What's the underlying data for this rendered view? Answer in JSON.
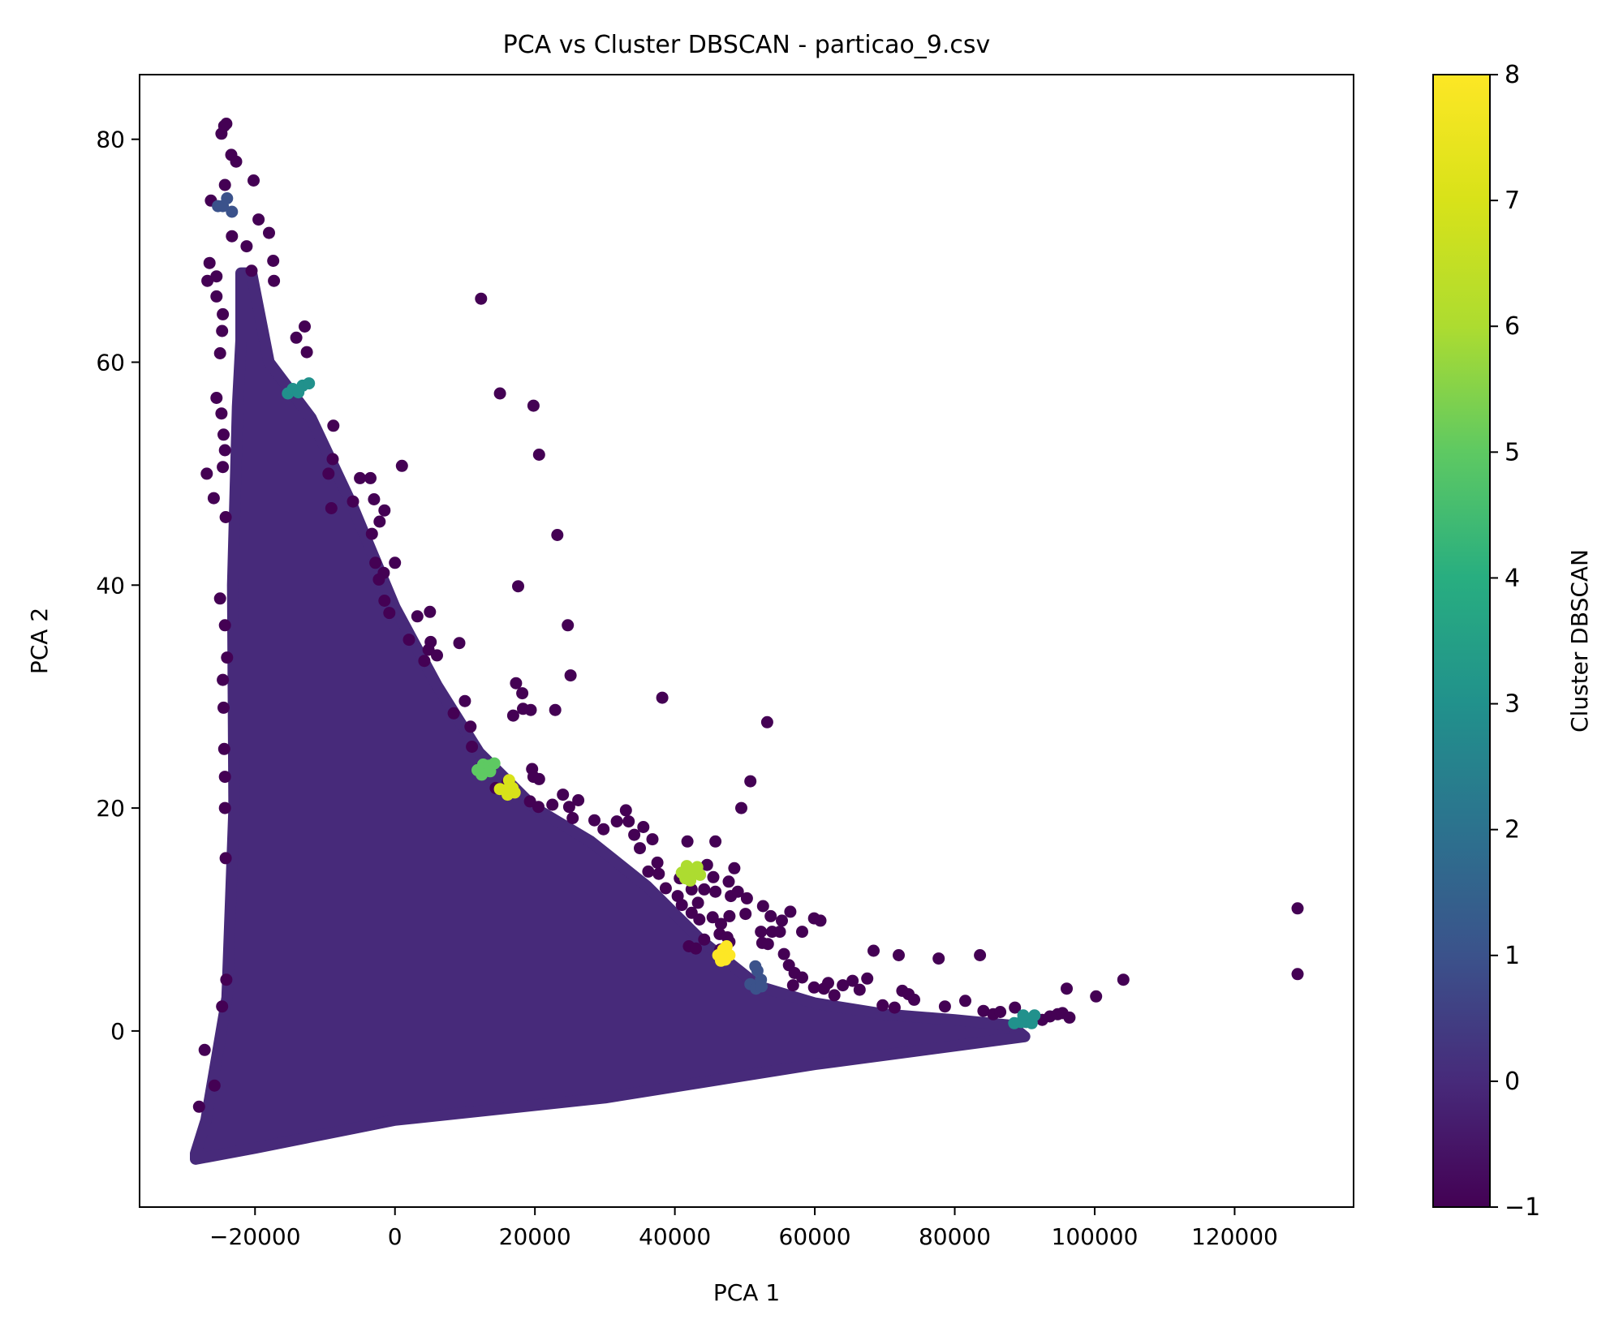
{
  "chart_data": {
    "type": "scatter",
    "title": "PCA vs Cluster DBSCAN - particao_9.csv",
    "xlabel": "PCA 1",
    "ylabel": "PCA 2",
    "xlim": [
      -36500,
      137000
    ],
    "ylim": [
      -15.8,
      85.8
    ],
    "xticks": [
      -20000,
      0,
      20000,
      40000,
      60000,
      80000,
      100000,
      120000
    ],
    "xtick_labels": [
      "−20000",
      "0",
      "20000",
      "40000",
      "60000",
      "80000",
      "100000",
      "120000"
    ],
    "yticks": [
      0,
      20,
      40,
      60,
      80
    ],
    "ytick_labels": [
      "0",
      "20",
      "40",
      "60",
      "80"
    ],
    "grid": false,
    "colorbar": {
      "label": "Cluster DBSCAN",
      "range": [
        -1,
        8
      ],
      "ticks": [
        -1,
        0,
        1,
        2,
        3,
        4,
        5,
        6,
        7,
        8
      ],
      "tick_labels": [
        "−1",
        "0",
        "1",
        "2",
        "3",
        "4",
        "5",
        "6",
        "7",
        "8"
      ],
      "colormap": "viridis"
    },
    "cluster_colors": {
      "-1": "#440154",
      "0": "#472a7a",
      "1": "#3b528b",
      "2": "#2c728e",
      "3": "#21918c",
      "4": "#28ae80",
      "5": "#5ec962",
      "6": "#addc30",
      "7": "#d8e219",
      "8": "#fde725"
    },
    "dense_region": {
      "cluster": 0,
      "polygon": [
        [
          -28500,
          -11
        ],
        [
          -27000,
          -8
        ],
        [
          -24000,
          3
        ],
        [
          -23000,
          20
        ],
        [
          -23200,
          40
        ],
        [
          -22500,
          56
        ],
        [
          -22000,
          62
        ],
        [
          -22000,
          68
        ],
        [
          -20500,
          68
        ],
        [
          -18000,
          60
        ],
        [
          -12000,
          55
        ],
        [
          -6000,
          47
        ],
        [
          0,
          38
        ],
        [
          6000,
          31
        ],
        [
          12000,
          25
        ],
        [
          20000,
          20
        ],
        [
          28000,
          17
        ],
        [
          36000,
          13
        ],
        [
          44000,
          8
        ],
        [
          52000,
          4
        ],
        [
          60000,
          2.5
        ],
        [
          70000,
          1.5
        ],
        [
          80000,
          1
        ],
        [
          88000,
          0.5
        ],
        [
          90000,
          -0.5
        ],
        [
          60000,
          -3
        ],
        [
          30000,
          -6
        ],
        [
          0,
          -8
        ],
        [
          -20000,
          -10.5
        ],
        [
          -28500,
          -11.5
        ]
      ]
    },
    "series": [
      {
        "cluster": -1,
        "points": [
          [
            -24800,
            80.5
          ],
          [
            -24400,
            81.2
          ],
          [
            -24100,
            81.4
          ],
          [
            -23400,
            78.6
          ],
          [
            -22700,
            78.0
          ],
          [
            -20200,
            76.3
          ],
          [
            -24300,
            75.9
          ],
          [
            -26300,
            74.5
          ],
          [
            -19500,
            72.8
          ],
          [
            -18000,
            71.6
          ],
          [
            -23300,
            71.3
          ],
          [
            -21200,
            70.4
          ],
          [
            -17400,
            69.1
          ],
          [
            -26500,
            68.9
          ],
          [
            -20500,
            68.2
          ],
          [
            -25500,
            67.7
          ],
          [
            -26800,
            67.3
          ],
          [
            -17300,
            67.3
          ],
          [
            -25500,
            65.9
          ],
          [
            -24600,
            64.3
          ],
          [
            -24700,
            62.8
          ],
          [
            -12900,
            63.2
          ],
          [
            -14100,
            62.2
          ],
          [
            -25000,
            60.8
          ],
          [
            -12600,
            60.9
          ],
          [
            -25500,
            56.8
          ],
          [
            -24800,
            55.4
          ],
          [
            -24500,
            53.5
          ],
          [
            -8800,
            54.3
          ],
          [
            -24300,
            52.1
          ],
          [
            -8900,
            51.3
          ],
          [
            -24600,
            50.6
          ],
          [
            -26900,
            50.0
          ],
          [
            -9500,
            50.0
          ],
          [
            -25900,
            47.8
          ],
          [
            -9100,
            46.9
          ],
          [
            -24200,
            46.1
          ],
          [
            -5000,
            49.6
          ],
          [
            -3500,
            49.6
          ],
          [
            -6000,
            47.5
          ],
          [
            -3000,
            47.7
          ],
          [
            -1500,
            46.7
          ],
          [
            -2200,
            45.7
          ],
          [
            -3300,
            44.6
          ],
          [
            1000,
            50.7
          ],
          [
            -2800,
            42.0
          ],
          [
            0,
            42.0
          ],
          [
            -1600,
            41.1
          ],
          [
            -2300,
            40.5
          ],
          [
            -1500,
            38.6
          ],
          [
            -800,
            37.5
          ],
          [
            3200,
            37.2
          ],
          [
            5000,
            37.6
          ],
          [
            2000,
            35.1
          ],
          [
            5100,
            34.9
          ],
          [
            9200,
            34.8
          ],
          [
            4800,
            34.2
          ],
          [
            6000,
            33.7
          ],
          [
            4200,
            33.2
          ],
          [
            10000,
            29.6
          ],
          [
            8400,
            28.5
          ],
          [
            10800,
            27.3
          ],
          [
            17300,
            31.2
          ],
          [
            18200,
            30.3
          ],
          [
            18300,
            28.9
          ],
          [
            19400,
            28.8
          ],
          [
            16900,
            28.3
          ],
          [
            22900,
            28.8
          ],
          [
            23200,
            44.5
          ],
          [
            24700,
            36.4
          ],
          [
            25100,
            31.9
          ],
          [
            17600,
            39.9
          ],
          [
            20600,
            51.7
          ],
          [
            19800,
            56.1
          ],
          [
            15000,
            57.2
          ],
          [
            12300,
            65.7
          ],
          [
            38200,
            29.9
          ],
          [
            53200,
            27.7
          ],
          [
            11000,
            25.5
          ],
          [
            14400,
            21.8
          ],
          [
            16100,
            22.3
          ],
          [
            19600,
            23.5
          ],
          [
            19800,
            22.8
          ],
          [
            20600,
            22.6
          ],
          [
            19300,
            20.6
          ],
          [
            20500,
            20.1
          ],
          [
            22500,
            20.3
          ],
          [
            24000,
            21.2
          ],
          [
            24900,
            20.1
          ],
          [
            26200,
            20.7
          ],
          [
            25400,
            19.1
          ],
          [
            28500,
            18.9
          ],
          [
            31700,
            18.8
          ],
          [
            33000,
            19.8
          ],
          [
            33400,
            18.8
          ],
          [
            29800,
            18.1
          ],
          [
            35500,
            18.3
          ],
          [
            36800,
            17.2
          ],
          [
            34200,
            17.6
          ],
          [
            41800,
            17.0
          ],
          [
            45800,
            17.0
          ],
          [
            35000,
            16.4
          ],
          [
            37500,
            15.1
          ],
          [
            36200,
            14.3
          ],
          [
            37700,
            14.1
          ],
          [
            40700,
            13.7
          ],
          [
            45500,
            13.8
          ],
          [
            48500,
            14.6
          ],
          [
            49500,
            20.0
          ],
          [
            50800,
            22.4
          ],
          [
            44600,
            14.9
          ],
          [
            44200,
            12.7
          ],
          [
            45800,
            12.5
          ],
          [
            47700,
            13.4
          ],
          [
            48000,
            12.1
          ],
          [
            49000,
            12.5
          ],
          [
            50300,
            11.9
          ],
          [
            40400,
            12.1
          ],
          [
            38700,
            12.8
          ],
          [
            42400,
            12.7
          ],
          [
            43300,
            11.5
          ],
          [
            41000,
            11.3
          ],
          [
            42400,
            10.6
          ],
          [
            43500,
            10.0
          ],
          [
            45400,
            10.2
          ],
          [
            46600,
            9.6
          ],
          [
            47800,
            10.3
          ],
          [
            50100,
            10.5
          ],
          [
            52600,
            11.2
          ],
          [
            53700,
            10.3
          ],
          [
            55300,
            9.9
          ],
          [
            56500,
            10.7
          ],
          [
            46400,
            8.7
          ],
          [
            47500,
            8.4
          ],
          [
            52300,
            8.9
          ],
          [
            53900,
            8.9
          ],
          [
            55000,
            8.9
          ],
          [
            58200,
            8.9
          ],
          [
            59900,
            10.1
          ],
          [
            60800,
            9.9
          ],
          [
            42000,
            7.6
          ],
          [
            43000,
            7.4
          ],
          [
            44200,
            8.2
          ],
          [
            46500,
            7.3
          ],
          [
            47800,
            8.0
          ],
          [
            52500,
            7.9
          ],
          [
            53300,
            7.8
          ],
          [
            55600,
            6.9
          ],
          [
            56300,
            5.9
          ],
          [
            57100,
            5.2
          ],
          [
            56900,
            4.1
          ],
          [
            58200,
            4.8
          ],
          [
            59900,
            3.9
          ],
          [
            61300,
            3.8
          ],
          [
            61900,
            4.3
          ],
          [
            62800,
            3.2
          ],
          [
            64000,
            4.1
          ],
          [
            65400,
            4.5
          ],
          [
            66400,
            3.7
          ],
          [
            67500,
            4.7
          ],
          [
            68400,
            7.2
          ],
          [
            72000,
            6.8
          ],
          [
            72500,
            3.6
          ],
          [
            73400,
            3.3
          ],
          [
            77700,
            6.5
          ],
          [
            69700,
            2.3
          ],
          [
            71400,
            2.1
          ],
          [
            74200,
            2.8
          ],
          [
            78600,
            2.2
          ],
          [
            83600,
            6.8
          ],
          [
            81500,
            2.7
          ],
          [
            84100,
            1.8
          ],
          [
            85500,
            1.5
          ],
          [
            86500,
            1.7
          ],
          [
            88600,
            2.1
          ],
          [
            92500,
            1.0
          ],
          [
            93600,
            1.3
          ],
          [
            94700,
            1.5
          ],
          [
            95400,
            1.6
          ],
          [
            96400,
            1.2
          ],
          [
            96000,
            3.8
          ],
          [
            100200,
            3.1
          ],
          [
            104100,
            4.6
          ],
          [
            129000,
            11.0
          ],
          [
            129000,
            5.1
          ],
          [
            -28000,
            -6.8
          ],
          [
            -27200,
            -1.7
          ],
          [
            -24100,
            4.6
          ],
          [
            -24700,
            2.2
          ],
          [
            -25800,
            -4.9
          ],
          [
            -24200,
            15.5
          ],
          [
            -24300,
            20.0
          ],
          [
            -24300,
            22.8
          ],
          [
            -24400,
            25.3
          ],
          [
            -24500,
            29.0
          ],
          [
            -24600,
            31.5
          ],
          [
            -24000,
            33.5
          ],
          [
            -24300,
            36.4
          ],
          [
            -25000,
            38.8
          ]
        ]
      },
      {
        "cluster": 1,
        "points": [
          [
            -25300,
            74.0
          ],
          [
            -24600,
            74.0
          ],
          [
            -24000,
            74.7
          ],
          [
            -23300,
            73.5
          ],
          [
            50800,
            4.2
          ],
          [
            51600,
            3.8
          ],
          [
            51800,
            5.4
          ],
          [
            51500,
            5.8
          ],
          [
            52300,
            4.6
          ],
          [
            52400,
            4.0
          ]
        ]
      },
      {
        "cluster": 3,
        "points": [
          [
            -15300,
            57.2
          ],
          [
            -14600,
            57.6
          ],
          [
            -13800,
            57.3
          ],
          [
            -13200,
            57.9
          ],
          [
            -12300,
            58.1
          ],
          [
            88500,
            0.7
          ],
          [
            89500,
            0.8
          ],
          [
            90200,
            0.8
          ],
          [
            91000,
            0.7
          ],
          [
            91400,
            1.4
          ],
          [
            89800,
            1.4
          ]
        ]
      },
      {
        "cluster": 5,
        "points": [
          [
            11800,
            23.4
          ],
          [
            12600,
            23.9
          ],
          [
            13400,
            23.8
          ],
          [
            14200,
            24.0
          ],
          [
            12400,
            23.0
          ],
          [
            13600,
            23.3
          ]
        ]
      },
      {
        "cluster": 6,
        "points": [
          [
            41000,
            14.2
          ],
          [
            41700,
            14.8
          ],
          [
            42600,
            14.4
          ],
          [
            43200,
            14.7
          ],
          [
            41500,
            13.7
          ],
          [
            42200,
            13.5
          ],
          [
            43600,
            14.0
          ]
        ]
      },
      {
        "cluster": 7,
        "points": [
          [
            15000,
            21.7
          ],
          [
            15800,
            21.6
          ],
          [
            16300,
            22.5
          ],
          [
            16800,
            21.8
          ],
          [
            17100,
            21.4
          ],
          [
            16100,
            21.2
          ]
        ]
      },
      {
        "cluster": 8,
        "points": [
          [
            46200,
            6.8
          ],
          [
            46900,
            7.3
          ],
          [
            47400,
            7.6
          ],
          [
            47800,
            6.8
          ],
          [
            46600,
            6.3
          ],
          [
            47200,
            6.4
          ]
        ]
      }
    ]
  }
}
